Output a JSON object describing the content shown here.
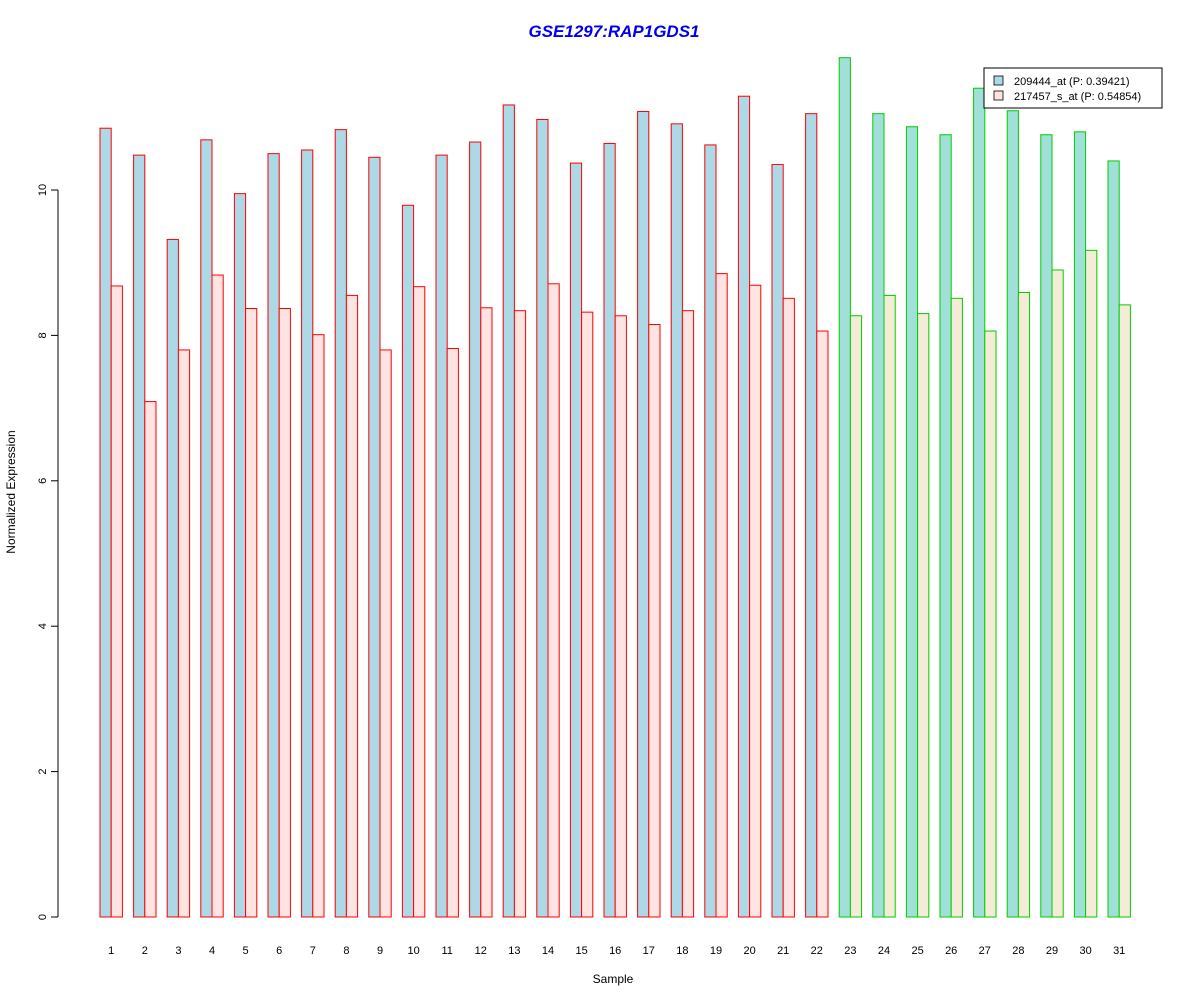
{
  "chart_data": {
    "type": "bar",
    "title": "GSE1297:RAP1GDS1",
    "xlabel": "Sample",
    "ylabel": "Normalized Expression",
    "ylim": [
      0,
      12
    ],
    "yticks": [
      0,
      2,
      4,
      6,
      8,
      10
    ],
    "categories": [
      "1",
      "2",
      "3",
      "4",
      "5",
      "6",
      "7",
      "8",
      "9",
      "10",
      "11",
      "12",
      "13",
      "14",
      "15",
      "16",
      "17",
      "18",
      "19",
      "20",
      "21",
      "22",
      "23",
      "24",
      "25",
      "26",
      "27",
      "28",
      "29",
      "30",
      "31"
    ],
    "series": [
      {
        "name": "209444_at (P: 0.39421)",
        "fill": "#add8e6",
        "values": [
          10.85,
          10.48,
          9.32,
          10.69,
          9.95,
          10.5,
          10.55,
          10.83,
          10.45,
          9.79,
          10.48,
          10.66,
          11.17,
          10.97,
          10.37,
          10.64,
          11.08,
          10.91,
          10.62,
          11.29,
          10.35,
          11.05,
          11.82,
          11.05,
          10.87,
          10.76,
          11.4,
          11.09,
          10.76,
          10.8,
          10.4
        ]
      },
      {
        "name": "217457_s_at (P: 0.54854)",
        "fill": "#ffe4e1",
        "values": [
          8.68,
          7.09,
          7.8,
          8.83,
          8.37,
          8.37,
          8.01,
          8.55,
          7.8,
          8.67,
          7.82,
          8.38,
          8.34,
          8.71,
          8.32,
          8.27,
          8.15,
          8.34,
          8.85,
          8.69,
          8.51,
          8.06,
          8.27,
          8.55,
          8.3,
          8.51,
          8.06,
          8.59,
          8.9,
          9.17,
          8.42
        ]
      }
    ],
    "group_colors": {
      "group_1_border": "#ff0000",
      "group_2_border": "#00cc00",
      "group_2_fill_series_1": "#a0e0d8",
      "group_2_fill_series_2": "#f5ecd8"
    },
    "group_1_samples": [
      "1",
      "2",
      "3",
      "4",
      "5",
      "6",
      "7",
      "8",
      "9",
      "10",
      "11",
      "12",
      "13",
      "14",
      "15",
      "16",
      "17",
      "18",
      "19",
      "20",
      "21",
      "22"
    ],
    "group_2_samples": [
      "23",
      "24",
      "25",
      "26",
      "27",
      "28",
      "29",
      "30",
      "31"
    ],
    "legend_position": "top-right",
    "grid": false
  }
}
